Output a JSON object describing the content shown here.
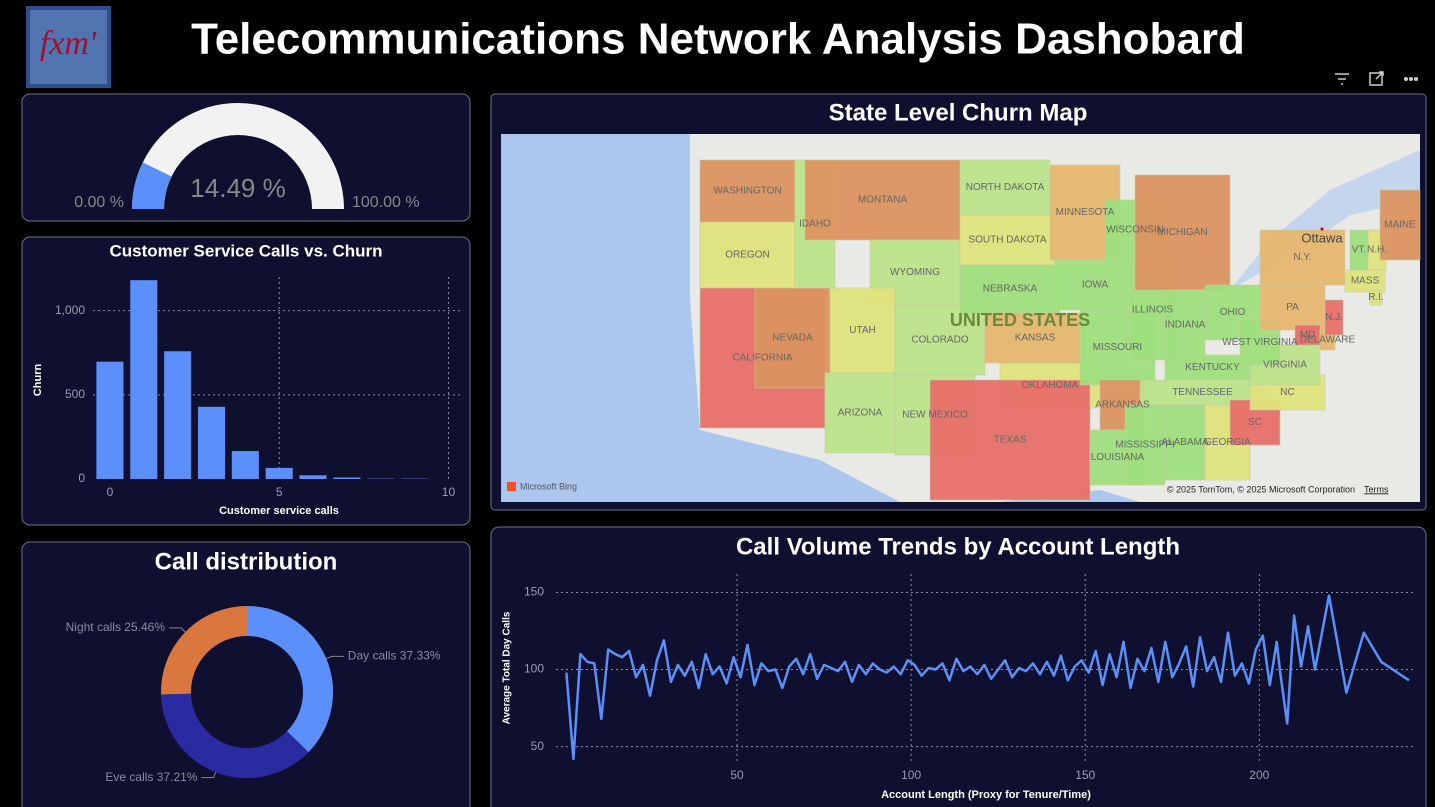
{
  "header": {
    "logo": "fxm'",
    "title": "Telecommunications Network Analysis Dashobard"
  },
  "chart_data": [
    {
      "type": "gauge",
      "values": [
        14.49
      ],
      "value_labels": [
        "14.49 %"
      ],
      "ylim": [
        0,
        100
      ],
      "yticks": [
        {
          "value": 0,
          "label": "0.00 %"
        },
        {
          "value": 100,
          "label": "100.00 %"
        }
      ],
      "color": "#5b8ff9",
      "track_color": "#f2f2f2"
    },
    {
      "type": "bar",
      "title": "Customer Service Calls vs. Churn",
      "x_label": "Customer service calls",
      "y_label": "Churn",
      "x": [
        0,
        1,
        2,
        3,
        4,
        5,
        6,
        7,
        8,
        9
      ],
      "values": [
        697,
        1181,
        759,
        429,
        166,
        66,
        22,
        9,
        2,
        2
      ],
      "color": "#5b8ff9",
      "xlim": [
        -0.5,
        10.4
      ],
      "xticks": [
        0,
        5,
        10
      ],
      "ylim": [
        0,
        1200
      ],
      "yticks": [
        0,
        500,
        {
          "value": 1000,
          "label": "1,000"
        }
      ],
      "grid": true
    },
    {
      "type": "pie",
      "title": "Call distribution",
      "donut": true,
      "categories": [
        "Day calls",
        "Eve calls",
        "Night calls"
      ],
      "values": [
        37.33,
        37.21,
        25.46
      ],
      "value_labels": [
        "Day calls 37.33%",
        "Eve calls 37.21%",
        "Night calls 25.46%"
      ],
      "colors": [
        "#5b8ff9",
        "#2a2ba3",
        "#d9773f"
      ]
    },
    {
      "type": "line",
      "title": "Call Volume Trends by Account Length",
      "x_label": "Account Length (Proxy for Tenure/Time)",
      "y_label": "Average Total Day Calls",
      "color": "#5b8ff9",
      "x": [
        1,
        3,
        5,
        7,
        9,
        11,
        13,
        15,
        17,
        19,
        21,
        23,
        25,
        27,
        29,
        31,
        33,
        35,
        37,
        39,
        41,
        43,
        45,
        47,
        49,
        51,
        53,
        55,
        57,
        59,
        61,
        63,
        65,
        67,
        69,
        71,
        73,
        75,
        77,
        79,
        81,
        83,
        85,
        87,
        89,
        91,
        93,
        95,
        97,
        99,
        101,
        103,
        105,
        107,
        109,
        111,
        113,
        115,
        117,
        119,
        121,
        123,
        125,
        127,
        129,
        131,
        133,
        135,
        137,
        139,
        141,
        143,
        145,
        147,
        149,
        151,
        153,
        155,
        157,
        159,
        161,
        163,
        165,
        167,
        169,
        171,
        173,
        175,
        177,
        179,
        181,
        183,
        185,
        187,
        189,
        191,
        193,
        195,
        197,
        199,
        201,
        203,
        205,
        206,
        208,
        210,
        212,
        214,
        216,
        220,
        225,
        230,
        235,
        243
      ],
      "values": [
        98,
        42,
        110,
        105,
        104,
        68,
        113,
        110,
        108,
        112,
        95,
        103,
        83,
        106,
        119,
        92,
        103,
        96,
        105,
        88,
        110,
        97,
        102,
        91,
        108,
        95,
        116,
        90,
        104,
        99,
        100,
        88,
        102,
        107,
        97,
        110,
        94,
        103,
        101,
        99,
        105,
        92,
        103,
        97,
        104,
        100,
        98,
        102,
        97,
        106,
        103,
        96,
        101,
        100,
        104,
        93,
        107,
        99,
        102,
        97,
        103,
        94,
        100,
        106,
        95,
        101,
        99,
        104,
        97,
        105,
        96,
        109,
        93,
        102,
        106,
        98,
        112,
        90,
        110,
        95,
        118,
        88,
        107,
        99,
        114,
        92,
        118,
        95,
        104,
        115,
        89,
        121,
        99,
        108,
        92,
        124,
        96,
        104,
        91,
        113,
        122,
        90,
        118,
        98,
        65,
        135,
        102,
        128,
        100,
        148,
        85,
        124,
        105,
        93
      ],
      "xlim": [
        -2,
        245
      ],
      "xticks": [
        50,
        100,
        150,
        200
      ],
      "ylim": [
        40,
        162
      ],
      "yticks": [
        50,
        100,
        150
      ],
      "grid": true
    }
  ],
  "map": {
    "title": "State Level Churn Map",
    "country": "UNITED STATES",
    "city": "Ottawa",
    "states": [
      "WASHINGTON",
      "OREGON",
      "CALIFORNIA",
      "NEVADA",
      "IDAHO",
      "MONTANA",
      "WYOMING",
      "UTAH",
      "ARIZONA",
      "COLORADO",
      "NEW MEXICO",
      "NORTH DAKOTA",
      "SOUTH DAKOTA",
      "NEBRASKA",
      "KANSAS",
      "OKLAHOMA",
      "TEXAS",
      "MINNESOTA",
      "IOWA",
      "MISSOURI",
      "ARKANSAS",
      "LOUISIANA",
      "WISCONSIN",
      "ILLINOIS",
      "MICHIGAN",
      "INDIANA",
      "OHIO",
      "KENTUCKY",
      "TENNESSEE",
      "MISSISSIPPI",
      "ALABAMA",
      "GEORGIA",
      "SC",
      "NC",
      "VIRGINIA",
      "WEST VIRGINIA",
      "PA",
      "N.Y.",
      "MD",
      "DELAWARE",
      "N.J.",
      "MASS",
      "R.I.",
      "VT.",
      "N.H.",
      "MAINE"
    ],
    "provider": "Microsoft Bing",
    "copyright": "© 2025 TomTom, © 2025 Microsoft Corporation",
    "terms": "Terms"
  }
}
